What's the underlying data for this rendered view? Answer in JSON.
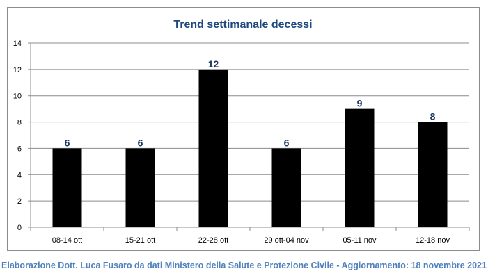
{
  "chart_data": {
    "type": "bar",
    "title": "Trend settimanale decessi",
    "categories": [
      "08-14 ott",
      "15-21 ott",
      "22-28 ott",
      "29 ott-04 nov",
      "05-11 nov",
      "12-18 nov"
    ],
    "values": [
      6,
      6,
      12,
      6,
      9,
      8
    ],
    "xlabel": "",
    "ylabel": "",
    "ylim": [
      0,
      14
    ],
    "yticks": [
      0,
      2,
      4,
      6,
      8,
      10,
      12,
      14
    ],
    "grid": true,
    "legend": "none",
    "bar_color": "#000000",
    "gridline_color": "#8c8c8c",
    "title_color": "#1f497d",
    "data_label_color": "#1f3864"
  },
  "footer": {
    "note": "Elaborazione Dott. Luca Fusaro da dati Ministero della Salute e Protezione Civile - Aggiornamento: 18 novembre 2021"
  }
}
